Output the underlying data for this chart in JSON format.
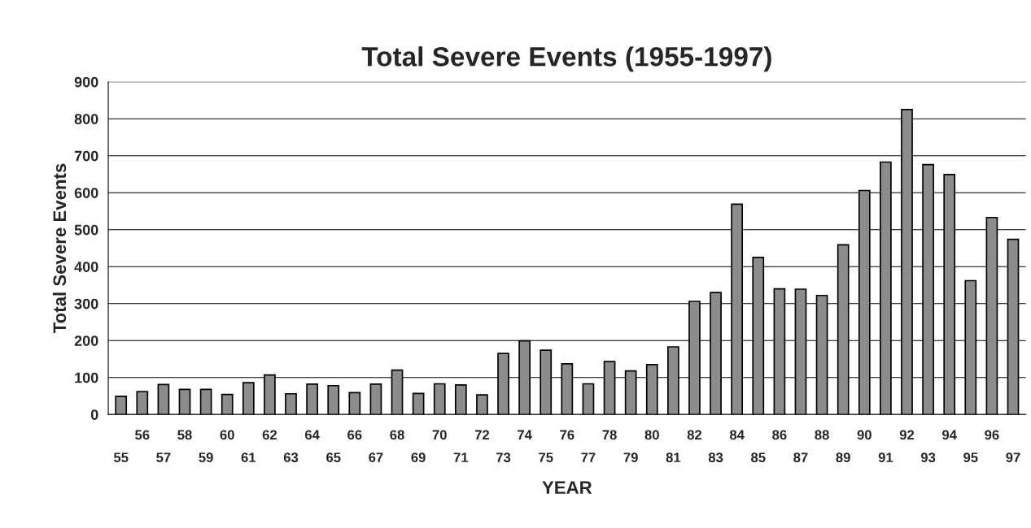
{
  "chart_data": {
    "type": "bar",
    "title": "Total Severe Events (1955-1997)",
    "xlabel": "YEAR",
    "ylabel": "Total Severe Events",
    "categories": [
      "55",
      "56",
      "57",
      "58",
      "59",
      "60",
      "61",
      "62",
      "63",
      "64",
      "65",
      "66",
      "67",
      "68",
      "69",
      "70",
      "71",
      "72",
      "73",
      "74",
      "75",
      "76",
      "77",
      "78",
      "79",
      "80",
      "81",
      "82",
      "83",
      "84",
      "85",
      "86",
      "87",
      "88",
      "89",
      "90",
      "91",
      "92",
      "93",
      "94",
      "95",
      "96",
      "97"
    ],
    "values": [
      49,
      62,
      81,
      68,
      68,
      54,
      86,
      107,
      56,
      82,
      78,
      59,
      82,
      120,
      57,
      83,
      80,
      53,
      165,
      199,
      174,
      137,
      83,
      143,
      118,
      135,
      183,
      306,
      330,
      569,
      425,
      340,
      339,
      322,
      459,
      606,
      683,
      825,
      676,
      649,
      362,
      533,
      474
    ],
    "color": "#8c8c8c",
    "ylim": [
      0,
      900
    ],
    "yticks": [
      0,
      100,
      200,
      300,
      400,
      500,
      600,
      700,
      800,
      900
    ],
    "grid": "y"
  }
}
